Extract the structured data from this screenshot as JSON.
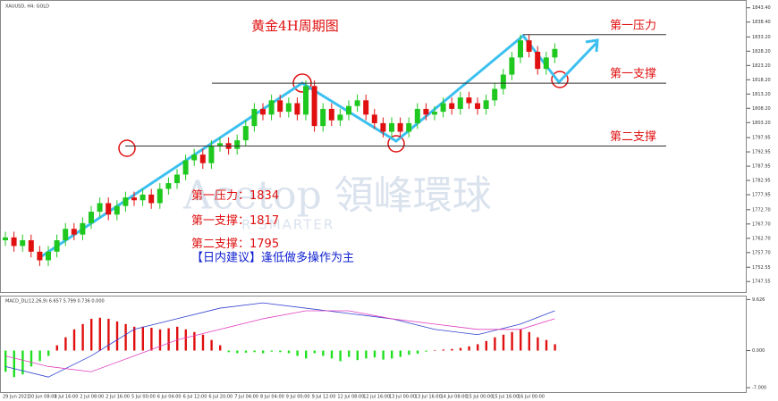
{
  "chart_data": [
    {
      "type": "candlestick",
      "symbol": "XAUUSD, H4: GOLD",
      "title": "黄金4H周期图",
      "categories": [
        "29 Jun 2021",
        null,
        null,
        "30 Jun 08:00",
        null,
        null,
        "1 Jul 16:00",
        null,
        null,
        "2 Jul 08:00",
        null,
        null,
        "2 Jul 16:00",
        null,
        null,
        "5 Jul 00:00",
        null,
        null,
        "6 Jul 04:00",
        null,
        null,
        "6 Jul 12:00",
        null,
        null,
        "6 Jul 20:00",
        null,
        null,
        "7 Jul 04:00",
        null,
        null,
        "8 Jul 04:00",
        null,
        null,
        "9 Jul 00:00",
        null,
        null,
        "9 Jul 12:00",
        null,
        null,
        "12 Jul 08:00",
        null,
        null,
        "12 Jul 16:00",
        null,
        null,
        "13 Jul 00:00",
        null,
        null,
        "13 Jul 16:00",
        null,
        null,
        "14 Jul 08:00",
        null,
        null,
        "15 Jul 00:00",
        null,
        null,
        "15 Jul 16:00",
        null,
        null,
        "16 Jul 00:00",
        null,
        null,
        null,
        null
      ],
      "open": [
        1762,
        1763,
        1760,
        1762,
        1758,
        1755,
        1758,
        1762,
        1766,
        1764,
        1768,
        1772,
        1775,
        1771,
        1774,
        1777,
        1776,
        1778,
        1775,
        1780,
        1782,
        1785,
        1790,
        1792,
        1789,
        1795,
        1796,
        1794,
        1797,
        1802,
        1808,
        1806,
        1811,
        1807,
        1810,
        1806,
        1816,
        1802,
        1808,
        1804,
        1806,
        1809,
        1811,
        1806,
        1803,
        1800,
        1803,
        1800,
        1803,
        1808,
        1806,
        1807,
        1810,
        1808,
        1812,
        1810,
        1808,
        1811,
        1815,
        1820,
        1826,
        1832,
        1828,
        1822,
        1826
      ],
      "high": [
        1765,
        1765,
        1764,
        1764,
        1760,
        1760,
        1764,
        1768,
        1768,
        1770,
        1774,
        1777,
        1777,
        1776,
        1779,
        1779,
        1780,
        1780,
        1782,
        1784,
        1787,
        1792,
        1794,
        1794,
        1797,
        1798,
        1798,
        1799,
        1804,
        1810,
        1810,
        1813,
        1813,
        1812,
        1812,
        1818,
        1818,
        1810,
        1810,
        1808,
        1811,
        1813,
        1813,
        1808,
        1805,
        1805,
        1805,
        1805,
        1810,
        1810,
        1809,
        1812,
        1812,
        1814,
        1814,
        1812,
        1813,
        1817,
        1822,
        1828,
        1834,
        1834,
        1830,
        1828,
        1831
      ],
      "low": [
        1760,
        1758,
        1758,
        1756,
        1753,
        1753,
        1756,
        1760,
        1762,
        1762,
        1766,
        1770,
        1769,
        1769,
        1772,
        1774,
        1774,
        1773,
        1773,
        1778,
        1780,
        1783,
        1788,
        1787,
        1787,
        1793,
        1792,
        1792,
        1795,
        1800,
        1804,
        1804,
        1805,
        1805,
        1804,
        1804,
        1800,
        1800,
        1802,
        1802,
        1804,
        1807,
        1804,
        1801,
        1798,
        1798,
        1798,
        1798,
        1801,
        1804,
        1804,
        1805,
        1806,
        1806,
        1808,
        1806,
        1806,
        1809,
        1813,
        1818,
        1824,
        1826,
        1820,
        1820,
        1824
      ],
      "close": [
        1763,
        1760,
        1762,
        1758,
        1755,
        1758,
        1762,
        1766,
        1764,
        1768,
        1772,
        1775,
        1771,
        1774,
        1777,
        1776,
        1778,
        1775,
        1780,
        1782,
        1785,
        1790,
        1792,
        1789,
        1795,
        1796,
        1794,
        1797,
        1802,
        1808,
        1806,
        1811,
        1807,
        1810,
        1806,
        1816,
        1802,
        1808,
        1804,
        1806,
        1809,
        1811,
        1806,
        1803,
        1800,
        1803,
        1800,
        1803,
        1808,
        1806,
        1807,
        1810,
        1808,
        1812,
        1810,
        1808,
        1811,
        1815,
        1820,
        1826,
        1832,
        1828,
        1822,
        1826,
        1829
      ],
      "up_color": "#1ec81e",
      "down_color": "#e01010",
      "ylim": [
        1744.5,
        1845.5
      ],
      "yticks": [
        {
          "value": 1843.4,
          "label": "1843.40"
        },
        {
          "value": 1838.4,
          "label": "1838.40"
        },
        {
          "value": 1833.2,
          "label": "1833.20"
        },
        {
          "value": 1828.2,
          "label": "1828.20"
        },
        {
          "value": 1823.2,
          "label": "1823.20"
        },
        {
          "value": 1818.2,
          "label": "1818.20"
        },
        {
          "value": 1813.2,
          "label": "1813.20"
        },
        {
          "value": 1808.2,
          "label": "1808.20"
        },
        {
          "value": 1803.2,
          "label": "1803.20"
        },
        {
          "value": 1797.95,
          "label": "1797.95"
        },
        {
          "value": 1792.95,
          "label": "1792.95"
        },
        {
          "value": 1787.95,
          "label": "1787.95"
        },
        {
          "value": 1782.95,
          "label": "1782.95"
        },
        {
          "value": 1777.95,
          "label": "1777.95"
        },
        {
          "value": 1772.7,
          "label": "1772.70"
        },
        {
          "value": 1767.7,
          "label": "1767.70"
        },
        {
          "value": 1762.7,
          "label": "1762.70"
        },
        {
          "value": 1757.7,
          "label": "1757.70"
        },
        {
          "value": 1752.55,
          "label": "1752.55"
        },
        {
          "value": 1747.55,
          "label": "1747.55"
        }
      ],
      "levels": [
        {
          "name": "第一压力",
          "note": "第一压力：",
          "value": 1834
        },
        {
          "name": "第一支撑",
          "note": "第一支撑：",
          "value": 1817
        },
        {
          "name": "第二支撑",
          "note": "第二支撑：",
          "value": 1795
        }
      ],
      "advice": "【日内建议】逢低做多操作为主",
      "watermark": [
        "Acetop 領峰環球",
        "R SMARTER"
      ]
    },
    {
      "type": "macd",
      "label": "MACD_DL(12,26,9) 6.657 5.799 0.736 0.000",
      "values": [
        -4,
        -5,
        -4.5,
        -3,
        -2,
        -1,
        1,
        2.5,
        4,
        5,
        6,
        6.2,
        6,
        5.5,
        5,
        4.5,
        4.5,
        4.3,
        4,
        4.2,
        4.5,
        4,
        3.5,
        3,
        2,
        1,
        -0.3,
        -0.5,
        -0.4,
        -0.3,
        -0.5,
        -0.2,
        -0.3,
        -0.5,
        -1,
        -1.5,
        -0.5,
        -1,
        -1.5,
        -2,
        -1.2,
        -1.8,
        -1.5,
        -1.3,
        -1.7,
        -1.5,
        -1.2,
        -0.8,
        -0.6,
        -0.2,
        0.1,
        0.2,
        0.3,
        0.5,
        0.8,
        1.2,
        1.8,
        2.5,
        3,
        3.5,
        4,
        3.5,
        2.5,
        2,
        1.2
      ],
      "pos_color": "#e01010",
      "neg_color": "#1ee01e",
      "lines": [
        {
          "color": "#3040d0",
          "x": [
            0,
            5,
            10,
            15,
            20,
            25,
            30,
            35,
            40,
            45,
            50,
            55,
            60,
            64
          ],
          "values": [
            -3,
            -5,
            -1,
            4,
            6,
            8,
            9,
            8,
            7,
            6,
            4,
            3,
            5,
            7.5
          ]
        },
        {
          "color": "#e040c0",
          "x": [
            0,
            5,
            10,
            15,
            20,
            25,
            30,
            35,
            40,
            45,
            50,
            55,
            60,
            64
          ],
          "values": [
            -1,
            -3,
            -4,
            -1,
            2,
            4,
            6,
            7.5,
            7.5,
            6,
            5,
            4,
            4,
            6
          ]
        }
      ],
      "ylim": [
        -8,
        10.2
      ],
      "yticks": [
        {
          "value": 9.626,
          "label": "9.626"
        },
        {
          "value": 0,
          "label": "0.000"
        },
        {
          "value": -7,
          "label": "-7.000"
        }
      ]
    }
  ]
}
